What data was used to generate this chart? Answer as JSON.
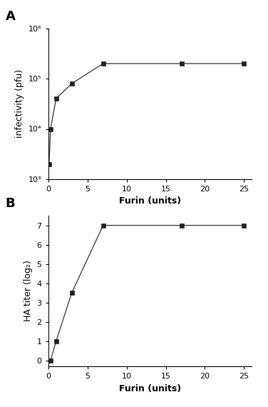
{
  "panel_A": {
    "label": "A",
    "x": [
      0.1,
      0.3,
      1,
      3,
      7,
      17,
      25
    ],
    "y": [
      2000,
      10000,
      40000,
      80000,
      200000,
      200000,
      200000
    ],
    "xlabel": "Furin (units)",
    "ylabel": "infectivity (pfu)",
    "xlim": [
      0,
      26
    ],
    "ylim_log": [
      1000,
      1000000
    ],
    "yticks": [
      1000,
      10000,
      100000,
      1000000
    ],
    "ytick_labels": [
      "10³",
      "10⁴",
      "10⁵",
      "10⁶"
    ],
    "xticks": [
      0,
      5,
      10,
      15,
      20,
      25
    ]
  },
  "panel_B": {
    "label": "B",
    "x": [
      0,
      0.3,
      1,
      3,
      7,
      17,
      25
    ],
    "y": [
      0,
      0,
      1,
      3.5,
      7,
      7,
      7
    ],
    "xlabel": "Furin (units)",
    "ylabel": "HA titer (log₂)",
    "xlim": [
      0,
      26
    ],
    "ylim": [
      -0.3,
      7.5
    ],
    "yticks": [
      0,
      1,
      2,
      3,
      4,
      5,
      6,
      7
    ],
    "xticks": [
      0,
      5,
      10,
      15,
      20,
      25
    ]
  },
  "marker": "s",
  "marker_size": 4,
  "line_color": "#444444",
  "marker_color": "#222222",
  "label_fontsize": 9,
  "tick_fontsize": 8,
  "panel_label_fontsize": 13
}
